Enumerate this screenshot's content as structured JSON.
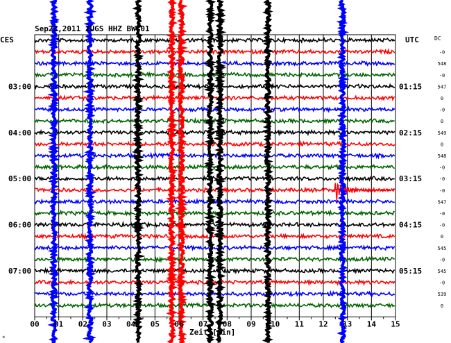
{
  "header": {
    "title": "Sep22,2011 ZUGS HHZ BW 01",
    "left_label": "CES",
    "right_label": "UTC",
    "dc_label": "DC"
  },
  "footer": {
    "corner_mark": "∗"
  },
  "chart_data": {
    "type": "line",
    "xlabel": "Zeit [min]",
    "ylabel": "",
    "xlim": [
      0,
      15
    ],
    "x_ticks": [
      "00",
      "01",
      "02",
      "03",
      "04",
      "05",
      "06",
      "07",
      "08",
      "09",
      "10",
      "11",
      "12",
      "13",
      "14",
      "15"
    ],
    "trace_colors": [
      "#000000",
      "#ff0000",
      "#0000ff",
      "#006400"
    ],
    "left_time_labels": [
      {
        "row": 4,
        "text": "03:00"
      },
      {
        "row": 8,
        "text": "04:00"
      },
      {
        "row": 12,
        "text": "05:00"
      },
      {
        "row": 16,
        "text": "06:00"
      },
      {
        "row": 20,
        "text": "07:00"
      }
    ],
    "right_time_labels": [
      {
        "row": 4,
        "text": "01:15"
      },
      {
        "row": 8,
        "text": "02:15"
      },
      {
        "row": 12,
        "text": "03:15"
      },
      {
        "row": 16,
        "text": "04:15"
      },
      {
        "row": 20,
        "text": "05:15"
      }
    ],
    "dc_values": [
      "",
      "-0",
      "548",
      "-0",
      "547",
      "0",
      "-0",
      "0",
      "549",
      "0",
      "548",
      "-0",
      "-0",
      "-0",
      "547",
      "-0",
      "-0",
      "0",
      "545",
      "-0",
      "545",
      "-0",
      "539",
      "0"
    ],
    "rows": 24,
    "disturbances": [
      {
        "minute": 0.8,
        "color": "#0000ff"
      },
      {
        "minute": 2.3,
        "color": "#0000ff"
      },
      {
        "minute": 4.3,
        "color": "#000000"
      },
      {
        "minute": 5.7,
        "color": "#ff0000"
      },
      {
        "minute": 6.1,
        "color": "#ff0000"
      },
      {
        "minute": 7.3,
        "color": "#000000"
      },
      {
        "minute": 7.7,
        "color": "#000000"
      },
      {
        "minute": 9.7,
        "color": "#000000"
      },
      {
        "minute": 12.8,
        "color": "#0000ff"
      }
    ],
    "events": [
      {
        "row": 13,
        "start_minute": 12.4,
        "end_minute": 15.0,
        "color": "#ff0000"
      }
    ]
  }
}
